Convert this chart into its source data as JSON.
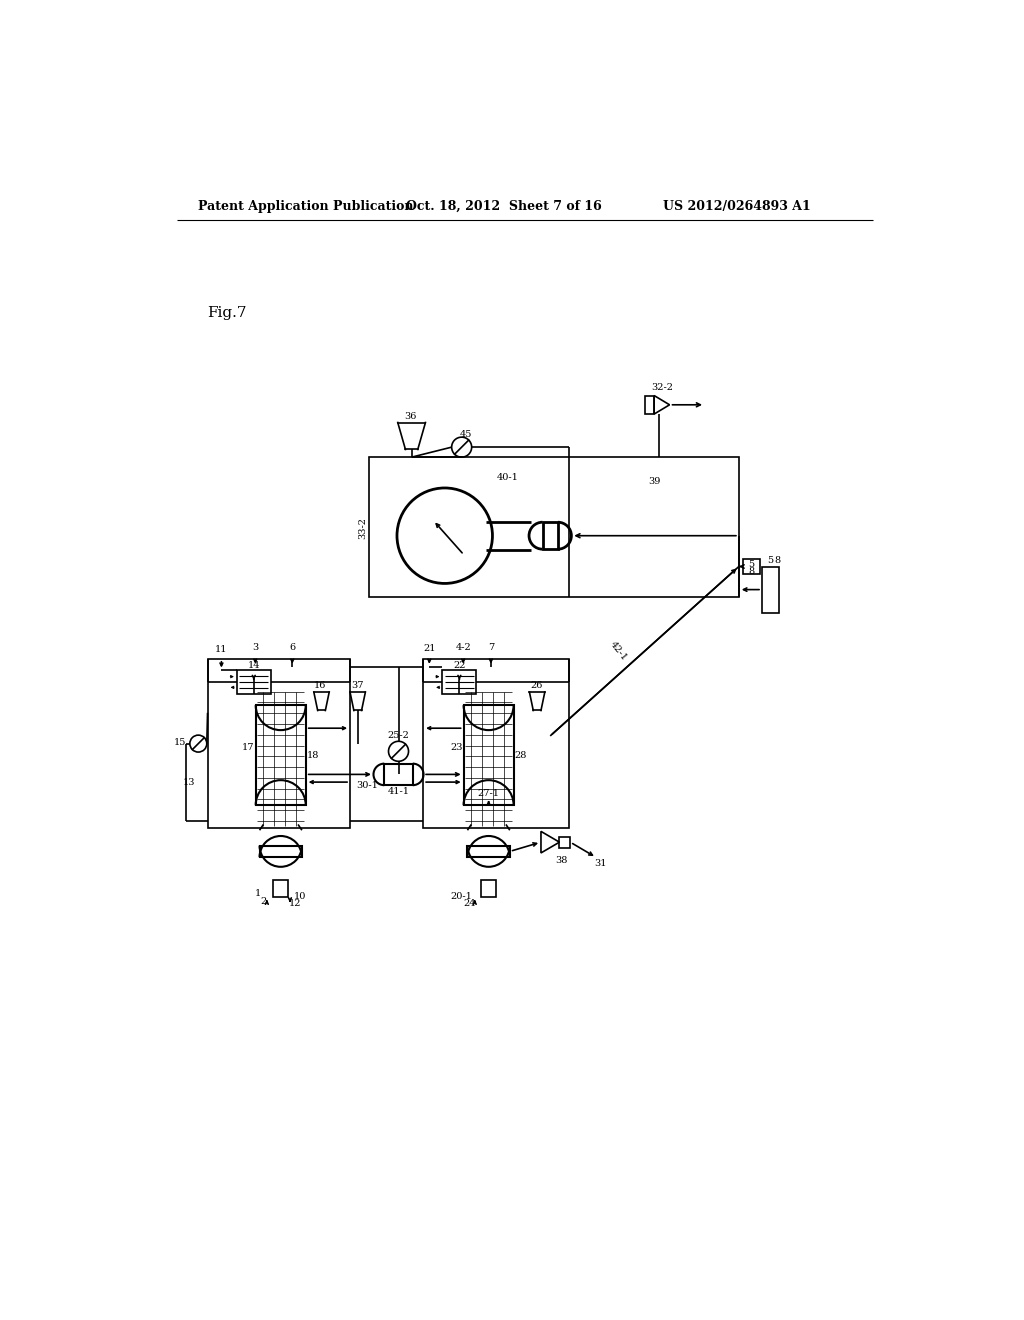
{
  "background_color": "#ffffff",
  "header_left": "Patent Application Publication",
  "header_center": "Oct. 18, 2012  Sheet 7 of 16",
  "header_right": "US 2012/0264893 A1",
  "fig_label": "Fig.7",
  "line_color": "#000000",
  "lw": 1.2
}
